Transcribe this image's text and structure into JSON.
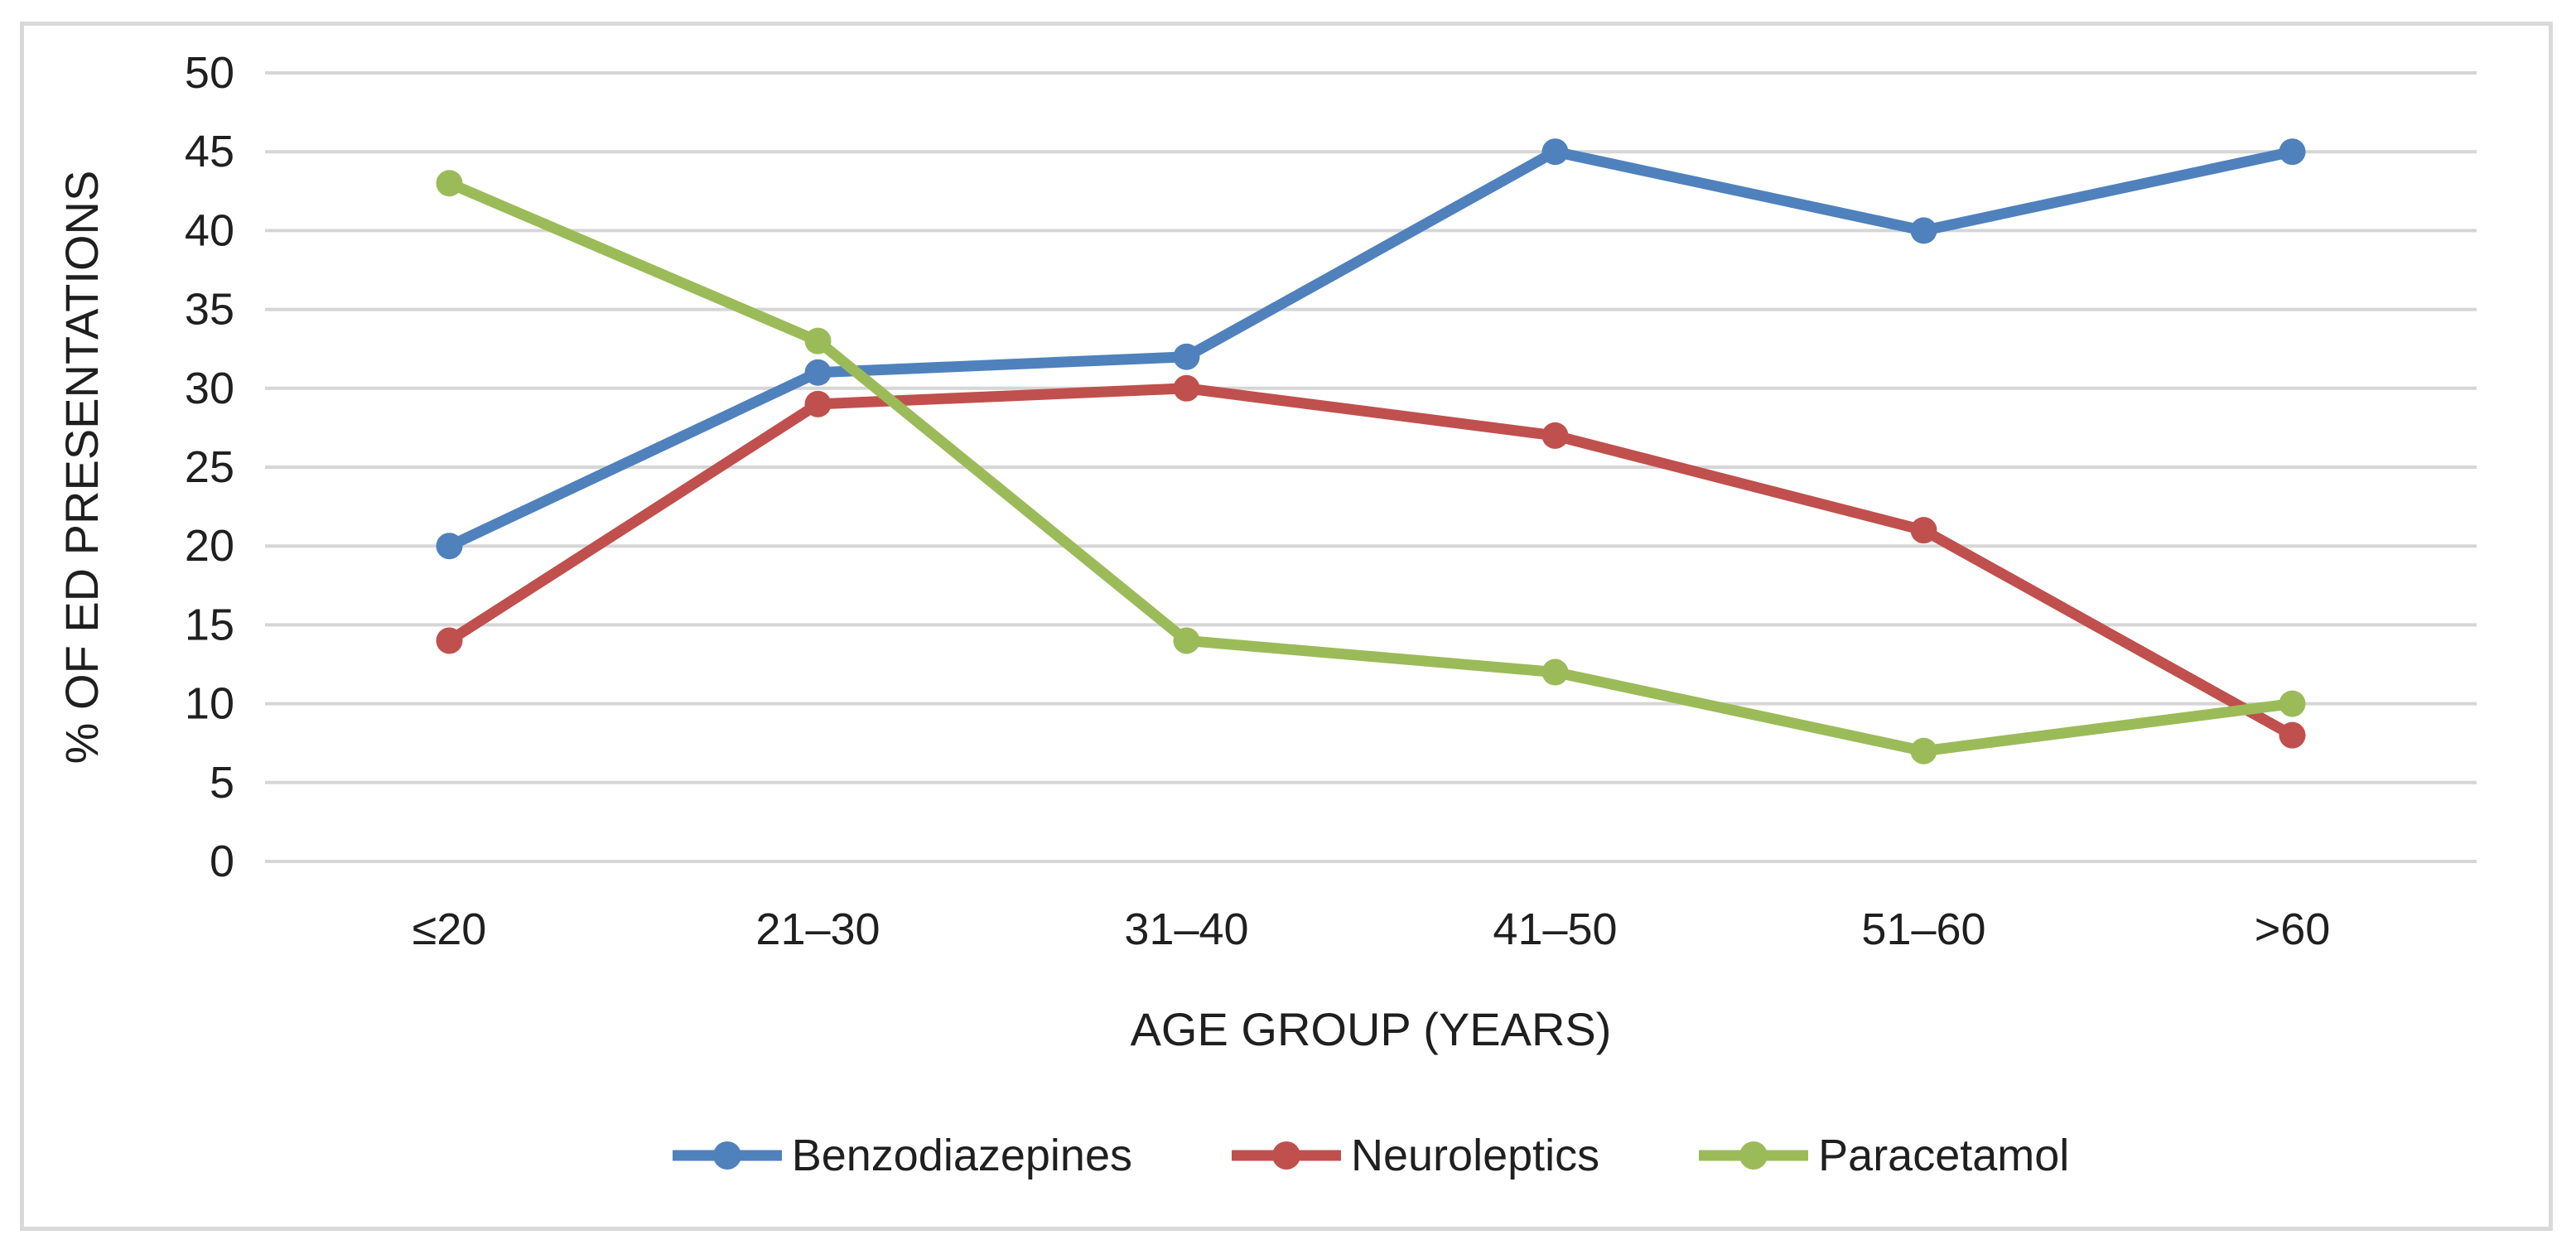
{
  "figure": {
    "background_color": "#ffffff",
    "frame_border_color": "#d9d9d9",
    "gridline_color": "#d6d6d6",
    "text_color": "#1f1f1f"
  },
  "chart_data": {
    "type": "line",
    "title": "",
    "categories": [
      "≤20",
      "21–30",
      "31–40",
      "41–50",
      "51–60",
      ">60"
    ],
    "series": [
      {
        "name": "Benzodiazepines",
        "color": "#4F81BD",
        "values": [
          20,
          31,
          32,
          45,
          40,
          45
        ]
      },
      {
        "name": "Neuroleptics",
        "color": "#C0504D",
        "values": [
          14,
          29,
          30,
          27,
          21,
          8
        ]
      },
      {
        "name": "Paracetamol",
        "color": "#9BBB59",
        "values": [
          43,
          33,
          14,
          12,
          7,
          10
        ]
      }
    ],
    "xlabel": "AGE GROUP (YEARS)",
    "ylabel": "% OF ED PRESENTATIONS",
    "ylim": [
      0,
      50
    ],
    "ytick_step": 5,
    "yticks": [
      "0",
      "5",
      "10",
      "15",
      "20",
      "25",
      "30",
      "35",
      "40",
      "45",
      "50"
    ],
    "grid": true,
    "legend_position": "bottom",
    "marker": "circle"
  }
}
